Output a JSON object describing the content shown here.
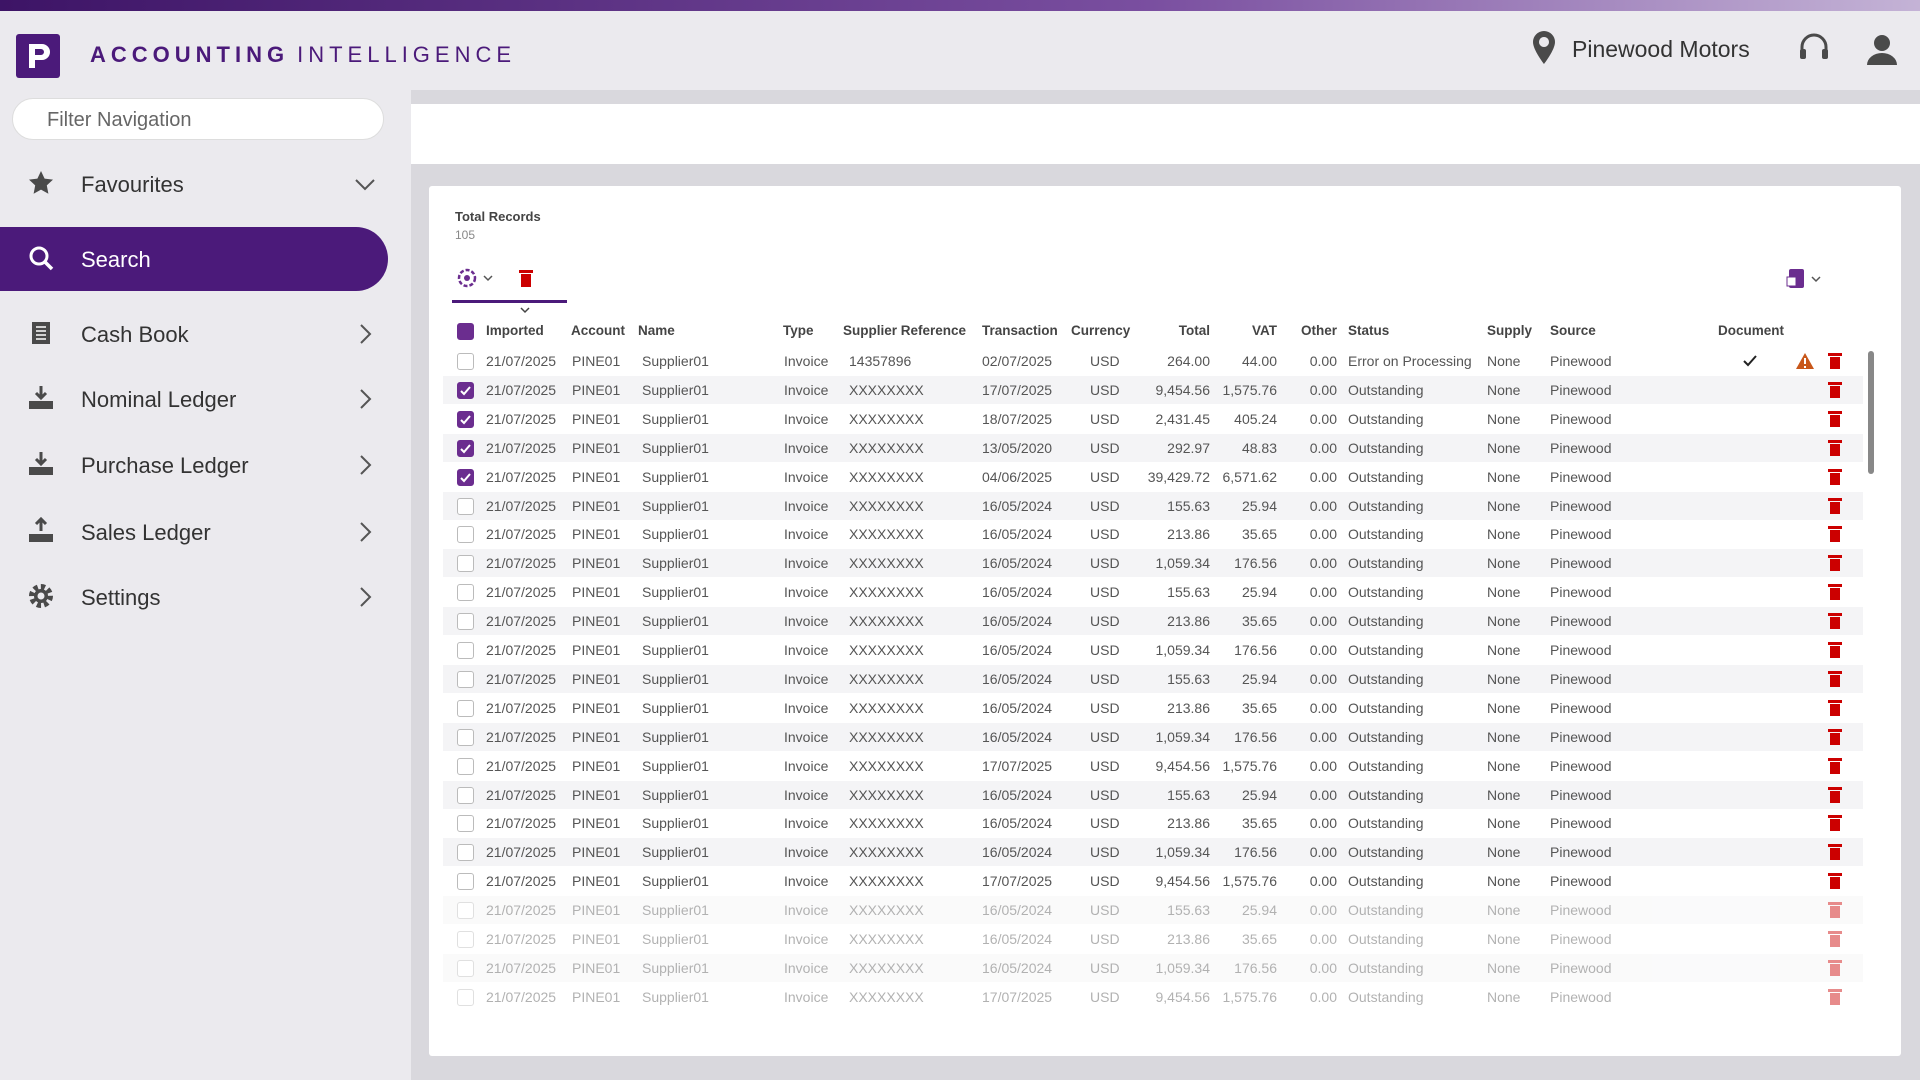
{
  "header": {
    "brand_bold": "ACCOUNTING",
    "brand_light": "INTELLIGENCE",
    "company": "Pinewood Motors"
  },
  "sidebar": {
    "filter_placeholder": "Filter Navigation",
    "items": [
      "Favourites",
      "Search",
      "Cash Book",
      "Nominal Ledger",
      "Purchase Ledger",
      "Sales Ledger",
      "Settings"
    ]
  },
  "summary": {
    "label": "Total Records",
    "count": "105"
  },
  "table": {
    "columns": [
      "Imported",
      "Account",
      "Name",
      "Type",
      "Supplier Reference",
      "Transaction",
      "Currency",
      "Total",
      "VAT",
      "Other",
      "Status",
      "Supply",
      "Source",
      "Document"
    ],
    "rows": [
      {
        "selected": false,
        "document": true,
        "cells": [
          "21/07/2025",
          "PINE01",
          "Supplier01",
          "Invoice",
          "14357896",
          "02/07/2025",
          "USD",
          "264.00",
          "44.00",
          "0.00",
          "Error on Processing",
          "None",
          "Pinewood"
        ]
      },
      {
        "selected": true,
        "cells": [
          "21/07/2025",
          "PINE01",
          "Supplier01",
          "Invoice",
          "XXXXXXXX",
          "17/07/2025",
          "USD",
          "9,454.56",
          "1,575.76",
          "0.00",
          "Outstanding",
          "None",
          "Pinewood"
        ]
      },
      {
        "selected": true,
        "cells": [
          "21/07/2025",
          "PINE01",
          "Supplier01",
          "Invoice",
          "XXXXXXXX",
          "18/07/2025",
          "USD",
          "2,431.45",
          "405.24",
          "0.00",
          "Outstanding",
          "None",
          "Pinewood"
        ]
      },
      {
        "selected": true,
        "cells": [
          "21/07/2025",
          "PINE01",
          "Supplier01",
          "Invoice",
          "XXXXXXXX",
          "13/05/2020",
          "USD",
          "292.97",
          "48.83",
          "0.00",
          "Outstanding",
          "None",
          "Pinewood"
        ]
      },
      {
        "selected": true,
        "cells": [
          "21/07/2025",
          "PINE01",
          "Supplier01",
          "Invoice",
          "XXXXXXXX",
          "04/06/2025",
          "USD",
          "39,429.72",
          "6,571.62",
          "0.00",
          "Outstanding",
          "None",
          "Pinewood"
        ]
      },
      {
        "selected": false,
        "cells": [
          "21/07/2025",
          "PINE01",
          "Supplier01",
          "Invoice",
          "XXXXXXXX",
          "16/05/2024",
          "USD",
          "155.63",
          "25.94",
          "0.00",
          "Outstanding",
          "None",
          "Pinewood"
        ]
      },
      {
        "selected": false,
        "cells": [
          "21/07/2025",
          "PINE01",
          "Supplier01",
          "Invoice",
          "XXXXXXXX",
          "16/05/2024",
          "USD",
          "213.86",
          "35.65",
          "0.00",
          "Outstanding",
          "None",
          "Pinewood"
        ]
      },
      {
        "selected": false,
        "cells": [
          "21/07/2025",
          "PINE01",
          "Supplier01",
          "Invoice",
          "XXXXXXXX",
          "16/05/2024",
          "USD",
          "1,059.34",
          "176.56",
          "0.00",
          "Outstanding",
          "None",
          "Pinewood"
        ]
      },
      {
        "selected": false,
        "cells": [
          "21/07/2025",
          "PINE01",
          "Supplier01",
          "Invoice",
          "XXXXXXXX",
          "16/05/2024",
          "USD",
          "155.63",
          "25.94",
          "0.00",
          "Outstanding",
          "None",
          "Pinewood"
        ]
      },
      {
        "selected": false,
        "cells": [
          "21/07/2025",
          "PINE01",
          "Supplier01",
          "Invoice",
          "XXXXXXXX",
          "16/05/2024",
          "USD",
          "213.86",
          "35.65",
          "0.00",
          "Outstanding",
          "None",
          "Pinewood"
        ]
      },
      {
        "selected": false,
        "cells": [
          "21/07/2025",
          "PINE01",
          "Supplier01",
          "Invoice",
          "XXXXXXXX",
          "16/05/2024",
          "USD",
          "1,059.34",
          "176.56",
          "0.00",
          "Outstanding",
          "None",
          "Pinewood"
        ]
      },
      {
        "selected": false,
        "cells": [
          "21/07/2025",
          "PINE01",
          "Supplier01",
          "Invoice",
          "XXXXXXXX",
          "16/05/2024",
          "USD",
          "155.63",
          "25.94",
          "0.00",
          "Outstanding",
          "None",
          "Pinewood"
        ]
      },
      {
        "selected": false,
        "cells": [
          "21/07/2025",
          "PINE01",
          "Supplier01",
          "Invoice",
          "XXXXXXXX",
          "16/05/2024",
          "USD",
          "213.86",
          "35.65",
          "0.00",
          "Outstanding",
          "None",
          "Pinewood"
        ]
      },
      {
        "selected": false,
        "cells": [
          "21/07/2025",
          "PINE01",
          "Supplier01",
          "Invoice",
          "XXXXXXXX",
          "16/05/2024",
          "USD",
          "1,059.34",
          "176.56",
          "0.00",
          "Outstanding",
          "None",
          "Pinewood"
        ]
      },
      {
        "selected": false,
        "cells": [
          "21/07/2025",
          "PINE01",
          "Supplier01",
          "Invoice",
          "XXXXXXXX",
          "17/07/2025",
          "USD",
          "9,454.56",
          "1,575.76",
          "0.00",
          "Outstanding",
          "None",
          "Pinewood"
        ]
      },
      {
        "selected": false,
        "cells": [
          "21/07/2025",
          "PINE01",
          "Supplier01",
          "Invoice",
          "XXXXXXXX",
          "16/05/2024",
          "USD",
          "155.63",
          "25.94",
          "0.00",
          "Outstanding",
          "None",
          "Pinewood"
        ]
      },
      {
        "selected": false,
        "cells": [
          "21/07/2025",
          "PINE01",
          "Supplier01",
          "Invoice",
          "XXXXXXXX",
          "16/05/2024",
          "USD",
          "213.86",
          "35.65",
          "0.00",
          "Outstanding",
          "None",
          "Pinewood"
        ]
      },
      {
        "selected": false,
        "cells": [
          "21/07/2025",
          "PINE01",
          "Supplier01",
          "Invoice",
          "XXXXXXXX",
          "16/05/2024",
          "USD",
          "1,059.34",
          "176.56",
          "0.00",
          "Outstanding",
          "None",
          "Pinewood"
        ]
      },
      {
        "selected": false,
        "cells": [
          "21/07/2025",
          "PINE01",
          "Supplier01",
          "Invoice",
          "XXXXXXXX",
          "17/07/2025",
          "USD",
          "9,454.56",
          "1,575.76",
          "0.00",
          "Outstanding",
          "None",
          "Pinewood"
        ]
      },
      {
        "selected": false,
        "cells": [
          "21/07/2025",
          "PINE01",
          "Supplier01",
          "Invoice",
          "XXXXXXXX",
          "16/05/2024",
          "USD",
          "155.63",
          "25.94",
          "0.00",
          "Outstanding",
          "None",
          "Pinewood"
        ]
      },
      {
        "selected": false,
        "cells": [
          "21/07/2025",
          "PINE01",
          "Supplier01",
          "Invoice",
          "XXXXXXXX",
          "16/05/2024",
          "USD",
          "213.86",
          "35.65",
          "0.00",
          "Outstanding",
          "None",
          "Pinewood"
        ]
      },
      {
        "selected": false,
        "cells": [
          "21/07/2025",
          "PINE01",
          "Supplier01",
          "Invoice",
          "XXXXXXXX",
          "16/05/2024",
          "USD",
          "1,059.34",
          "176.56",
          "0.00",
          "Outstanding",
          "None",
          "Pinewood"
        ]
      },
      {
        "selected": false,
        "cells": [
          "21/07/2025",
          "PINE01",
          "Supplier01",
          "Invoice",
          "XXXXXXXX",
          "17/07/2025",
          "USD",
          "9,454.56",
          "1,575.76",
          "0.00",
          "Outstanding",
          "None",
          "Pinewood"
        ]
      }
    ]
  }
}
